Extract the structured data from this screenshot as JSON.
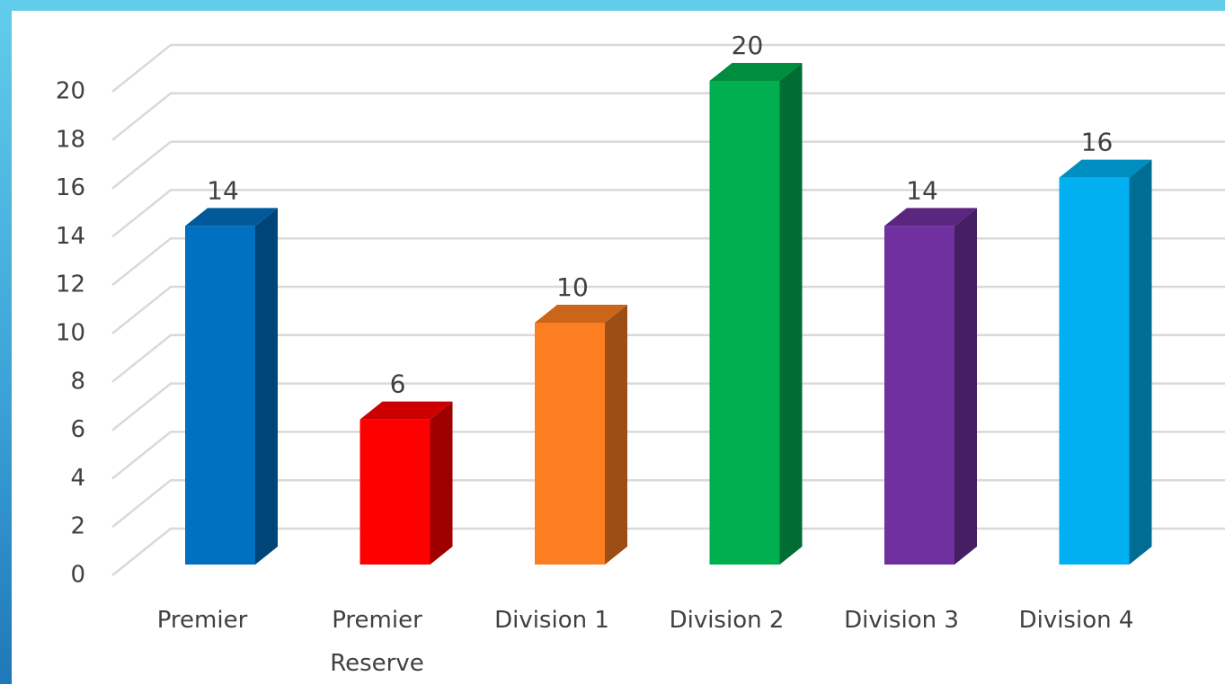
{
  "chart_data": {
    "type": "bar3d",
    "categories": [
      "Premier",
      "Premier Reserve",
      "Division 1",
      "Division 2",
      "Division 3",
      "Division 4"
    ],
    "values": [
      14,
      6,
      10,
      20,
      14,
      16
    ],
    "colors": [
      "#0070c0",
      "#ff0000",
      "#fd7e21",
      "#00b050",
      "#7030a0",
      "#00b0f0"
    ],
    "ylim": [
      0,
      20
    ],
    "yticks": [
      0,
      2,
      4,
      6,
      8,
      10,
      12,
      14,
      16,
      18,
      20
    ],
    "grid": true
  }
}
